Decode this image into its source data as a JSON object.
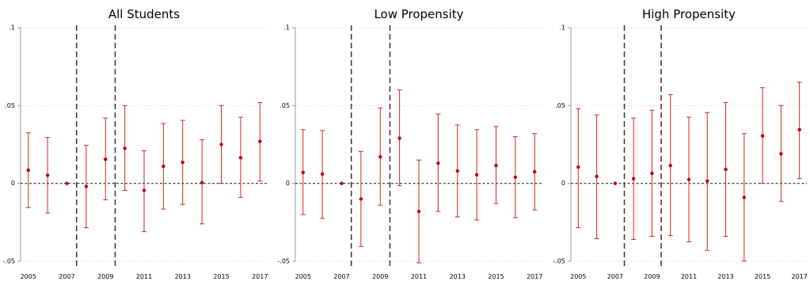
{
  "chart_data": [
    {
      "type": "scatter",
      "title": "All Students",
      "x": [
        2005,
        2006,
        2007,
        2008,
        2009,
        2010,
        2011,
        2012,
        2013,
        2014,
        2015,
        2016,
        2017
      ],
      "y": [
        0.0085,
        0.0052,
        0.0,
        -0.002,
        0.0155,
        0.0225,
        -0.0045,
        0.011,
        0.0135,
        0.0005,
        0.025,
        0.0165,
        0.027
      ],
      "ci_low": [
        -0.0155,
        -0.019,
        null,
        -0.0285,
        -0.0105,
        -0.0045,
        -0.031,
        -0.0165,
        -0.0135,
        -0.026,
        0.0,
        -0.009,
        0.0015
      ],
      "ci_high": [
        0.0325,
        0.0295,
        null,
        0.0245,
        0.042,
        0.05,
        0.021,
        0.0385,
        0.0405,
        0.028,
        0.05,
        0.0425,
        0.052
      ],
      "vlines": [
        2007.5,
        2009.5
      ],
      "xticks": [
        "2005",
        "2007",
        "2009",
        "2011",
        "2013",
        "2015",
        "2017"
      ],
      "yticks": [
        "-.05",
        "0",
        ".05",
        ".1"
      ],
      "ylim": [
        -0.05,
        0.1
      ],
      "xlim": [
        2004.6,
        2017.4
      ],
      "grid": true
    },
    {
      "type": "scatter",
      "title": "Low Propensity",
      "x": [
        2005,
        2006,
        2007,
        2008,
        2009,
        2010,
        2011,
        2012,
        2013,
        2014,
        2015,
        2016,
        2017
      ],
      "y": [
        0.007,
        0.006,
        0.0,
        -0.01,
        0.017,
        0.029,
        -0.018,
        0.013,
        0.008,
        0.0055,
        0.0115,
        0.004,
        0.0075
      ],
      "ci_low": [
        -0.02,
        -0.0225,
        null,
        -0.0405,
        -0.014,
        -0.0015,
        -0.051,
        -0.018,
        -0.0215,
        -0.0235,
        -0.013,
        -0.022,
        -0.017
      ],
      "ci_high": [
        0.0345,
        0.034,
        null,
        0.0205,
        0.0485,
        0.06,
        0.015,
        0.0445,
        0.0375,
        0.0345,
        0.0365,
        0.03,
        0.032
      ],
      "vlines": [
        2007.5,
        2009.5
      ],
      "xticks": [
        "2005",
        "2007",
        "2009",
        "2011",
        "2013",
        "2015",
        "2017"
      ],
      "yticks": [
        "-.05",
        "0",
        ".05",
        ".1"
      ],
      "ylim": [
        -0.05,
        0.1
      ],
      "xlim": [
        2004.6,
        2017.4
      ],
      "grid": true
    },
    {
      "type": "scatter",
      "title": "High Propensity",
      "x": [
        2005,
        2006,
        2007,
        2008,
        2009,
        2010,
        2011,
        2012,
        2013,
        2014,
        2015,
        2016,
        2017
      ],
      "y": [
        0.0105,
        0.0045,
        0.0,
        0.003,
        0.0065,
        0.0115,
        0.0025,
        0.0015,
        0.009,
        -0.009,
        0.0305,
        0.019,
        0.0345
      ],
      "ci_low": [
        -0.0285,
        -0.0355,
        null,
        -0.036,
        -0.034,
        -0.0335,
        -0.0375,
        -0.043,
        -0.034,
        -0.05,
        0.0,
        -0.0115,
        0.003
      ],
      "ci_high": [
        0.048,
        0.044,
        null,
        0.042,
        0.047,
        0.057,
        0.0425,
        0.0455,
        0.052,
        0.032,
        0.0615,
        0.05,
        0.065
      ],
      "vlines": [
        2007.5,
        2009.5
      ],
      "xticks": [
        "2005",
        "2007",
        "2009",
        "2011",
        "2013",
        "2015",
        "2017"
      ],
      "yticks": [
        "-.05",
        "0",
        ".05",
        ".1"
      ],
      "ylim": [
        -0.05,
        0.1
      ],
      "xlim": [
        2004.6,
        2017.4
      ],
      "grid": true
    }
  ],
  "colors": {
    "marker": "#c00000",
    "ci_line": "#d42424",
    "zero_line": "#333333",
    "vline": "#333333",
    "grid": "#dcdcdc",
    "axis": "#999999"
  }
}
